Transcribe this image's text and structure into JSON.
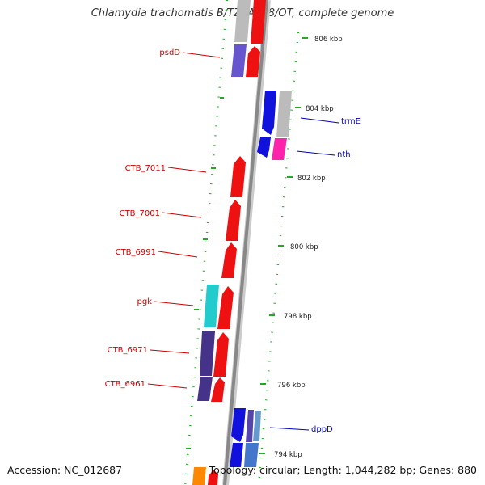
{
  "title": "Chlamydia trachomatis B/TZ1A828/OT, complete genome",
  "footer": {
    "accession": "Accession: NC_012687",
    "summary": "Topology: circular; Length: 1,044,282 bp; Genes: 880"
  },
  "tick_labels": [
    "806 kbp",
    "804 kbp",
    "802 kbp",
    "800 kbp",
    "798 kbp",
    "796 kbp",
    "794 kbp"
  ],
  "left_labels": [
    "psdD",
    "CTB_7011",
    "CTB_7001",
    "CTB_6991",
    "pgk",
    "CTB_6971",
    "CTB_6961"
  ],
  "right_labels": [
    "trmE",
    "nth",
    "dppD"
  ],
  "colors": {
    "backbone": "#999999",
    "forward_gene": "#ee1111",
    "reverse_gene": "#1111dd",
    "tick": "#22aa22",
    "left_label": "#cc0000",
    "right_label": "#0000bb"
  }
}
